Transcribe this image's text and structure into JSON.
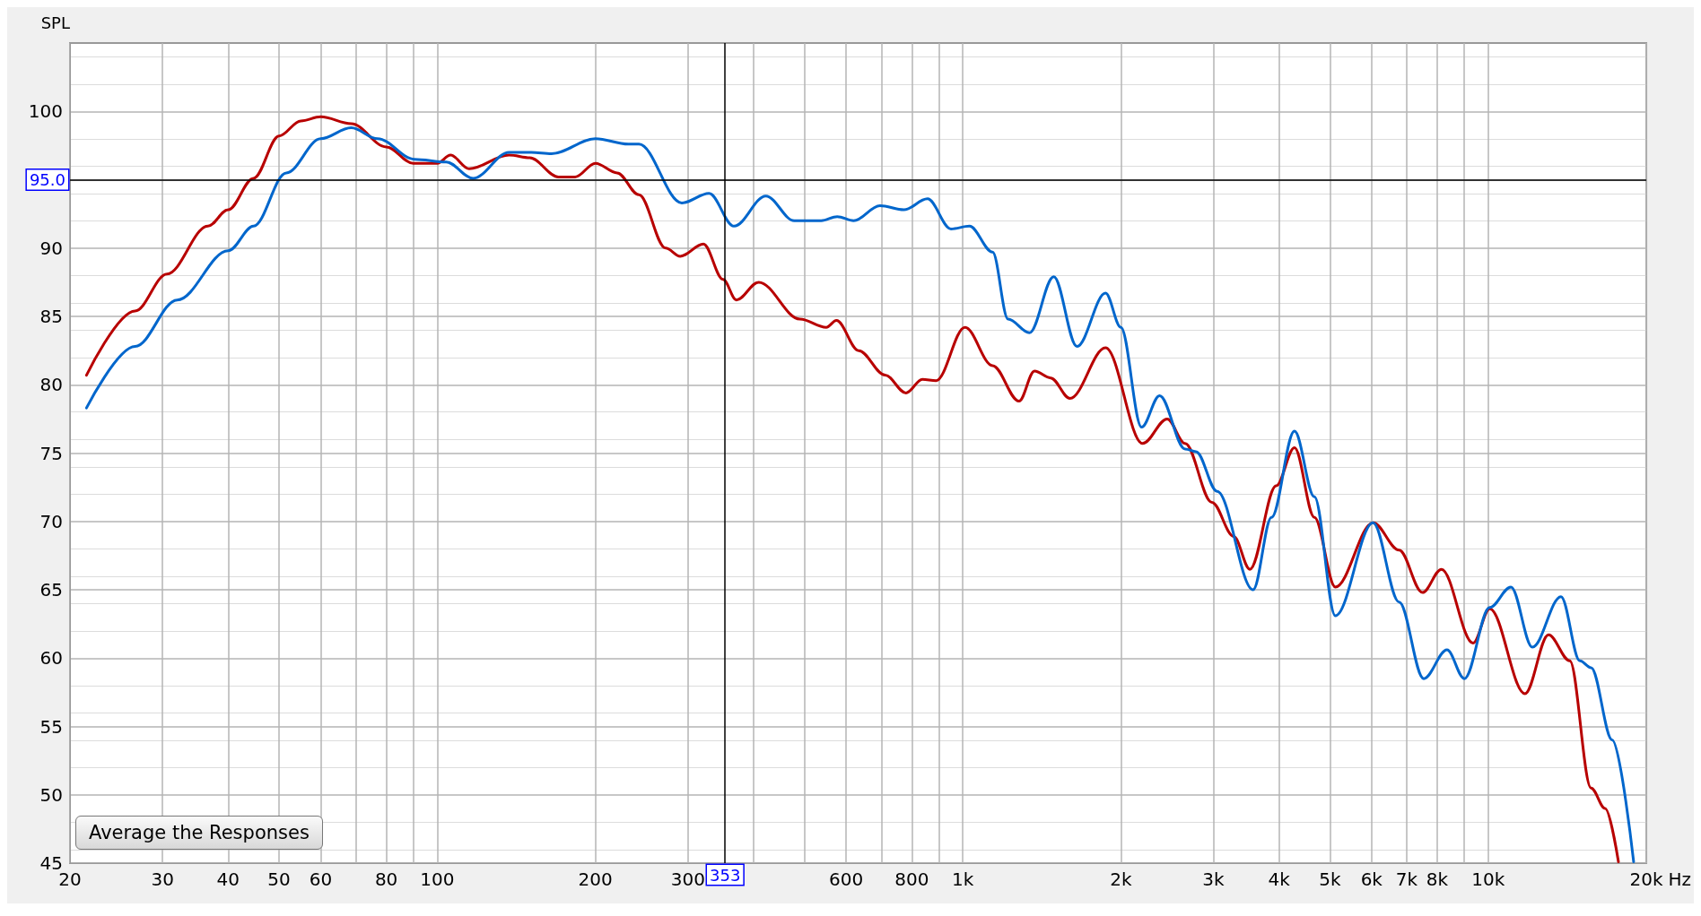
{
  "chart_data": {
    "type": "line",
    "ylabel": "SPL",
    "log": "x",
    "grid": true,
    "marker": "none",
    "line_style": "solid",
    "xlim": [
      20,
      20000
    ],
    "ylim": [
      45,
      105
    ],
    "xticks": [
      20,
      30,
      40,
      50,
      60,
      {
        "value": 70,
        "label": null
      },
      80,
      {
        "value": 90,
        "label": null
      },
      100,
      200,
      300,
      {
        "value": 400,
        "label": null
      },
      {
        "value": 500,
        "label": null
      },
      600,
      {
        "value": 700,
        "label": null
      },
      800,
      {
        "value": 900,
        "label": null
      },
      {
        "value": 1000,
        "label": "1k"
      },
      {
        "value": 2000,
        "label": "2k"
      },
      {
        "value": 3000,
        "label": "3k"
      },
      {
        "value": 4000,
        "label": "4k"
      },
      {
        "value": 5000,
        "label": "5k"
      },
      {
        "value": 6000,
        "label": "6k"
      },
      {
        "value": 7000,
        "label": "7k"
      },
      {
        "value": 8000,
        "label": "8k"
      },
      {
        "value": 9000,
        "label": null
      },
      {
        "value": 10000,
        "label": "10k"
      },
      {
        "value": 20000,
        "label": "20k"
      }
    ],
    "xlabel": "Hz",
    "yticks": [
      45,
      50,
      55,
      60,
      65,
      70,
      75,
      80,
      85,
      90,
      {
        "value": 95,
        "label": null
      },
      100
    ],
    "ref_lines": [
      {
        "axis": "x",
        "value": 353,
        "label": "353",
        "color": "#000000"
      },
      {
        "axis": "y",
        "value": 95,
        "label": "95.0",
        "color": "#000000"
      }
    ],
    "annotations": [
      "Average the Responses"
    ],
    "series": [
      {
        "color": "#b80000",
        "x": [
          21.5,
          26.6,
          30.6,
          36.6,
          40,
          44.7,
          50,
          55,
          60,
          68.6,
          80,
          90,
          100,
          106,
          115,
          137,
          150,
          170,
          183,
          200,
          220,
          242,
          272,
          290,
          321,
          350,
          371,
          409,
          490,
          550,
          575,
          634,
          712,
          780,
          838,
          890,
          1010,
          1140,
          1280,
          1370,
          1470,
          1600,
          1870,
          2200,
          2450,
          2650,
          2980,
          3280,
          3520,
          3950,
          4280,
          4670,
          5120,
          6040,
          6770,
          7500,
          8150,
          9360,
          10070,
          11750,
          13030,
          14300,
          15700,
          16700,
          17700
        ],
        "values": [
          80.7,
          85.4,
          88.1,
          91.6,
          92.8,
          95.1,
          98.2,
          99.3,
          99.6,
          99.1,
          97.4,
          96.2,
          96.2,
          96.8,
          95.8,
          96.8,
          96.6,
          95.2,
          95.2,
          96.2,
          95.5,
          93.9,
          90.0,
          89.4,
          90.3,
          87.7,
          86.2,
          87.5,
          84.8,
          84.2,
          84.7,
          82.5,
          80.7,
          79.4,
          80.4,
          80.3,
          84.2,
          81.4,
          78.8,
          81.0,
          80.5,
          79.0,
          82.7,
          75.7,
          77.5,
          75.7,
          71.4,
          68.9,
          66.5,
          72.6,
          75.4,
          70.3,
          65.2,
          69.9,
          67.9,
          64.8,
          66.5,
          61.1,
          63.6,
          57.4,
          61.7,
          59.8,
          50.5,
          49.0,
          45.1
        ]
      },
      {
        "color": "#0066cc",
        "x": [
          21.5,
          26.6,
          32,
          40,
          44.7,
          51.6,
          60,
          68.6,
          77,
          90.5,
          104,
          117,
          137,
          151,
          165,
          200,
          231,
          242,
          292,
          329,
          367,
          422,
          478,
          538,
          577,
          620,
          696,
          773,
          857,
          950,
          1030,
          1140,
          1220,
          1340,
          1490,
          1650,
          1870,
          2000,
          2190,
          2370,
          2650,
          2780,
          3050,
          3570,
          3870,
          4280,
          4670,
          5120,
          6040,
          6770,
          7540,
          8350,
          9010,
          10070,
          11050,
          12140,
          13760,
          14950,
          15700,
          17230,
          18920
        ],
        "values": [
          78.3,
          82.8,
          86.2,
          89.8,
          91.6,
          95.5,
          98.0,
          98.8,
          98.0,
          96.5,
          96.3,
          95.1,
          97.0,
          97.0,
          96.9,
          98.0,
          97.6,
          97.6,
          93.3,
          94.0,
          91.6,
          93.8,
          92.0,
          92.0,
          92.3,
          92.0,
          93.1,
          92.8,
          93.6,
          91.4,
          91.6,
          89.7,
          84.8,
          83.8,
          87.9,
          82.8,
          86.7,
          84.2,
          76.9,
          79.2,
          75.3,
          75.1,
          72.2,
          65.0,
          70.3,
          76.6,
          71.8,
          63.1,
          69.9,
          64.1,
          58.5,
          60.6,
          58.5,
          63.7,
          65.2,
          60.8,
          64.5,
          59.8,
          59.3,
          54.0,
          45.1
        ]
      }
    ]
  }
}
